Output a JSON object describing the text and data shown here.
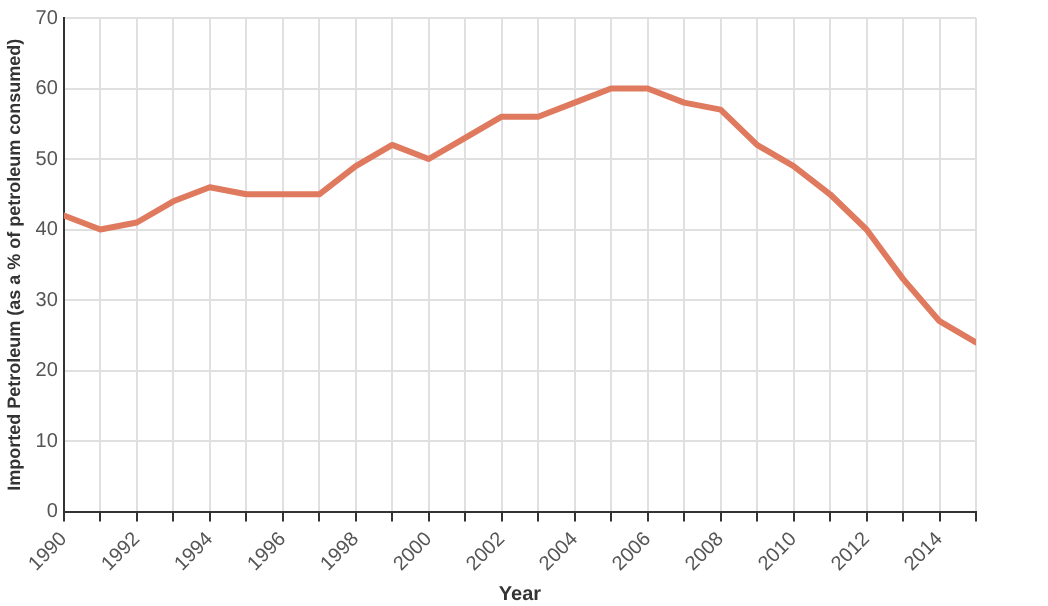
{
  "chart_data": {
    "type": "line",
    "xlabel": "Year",
    "ylabel": "Imported Petroleum (as a % of petroleum consumed)",
    "x": [
      1990,
      1991,
      1992,
      1993,
      1994,
      1995,
      1996,
      1997,
      1998,
      1999,
      2000,
      2001,
      2002,
      2003,
      2004,
      2005,
      2006,
      2007,
      2008,
      2009,
      2010,
      2011,
      2012,
      2013,
      2014,
      2015
    ],
    "series": [
      {
        "color": "#e07a5f",
        "values": [
          42,
          40,
          41,
          44,
          46,
          45,
          45,
          45,
          49,
          52,
          50,
          53,
          56,
          56,
          58,
          60,
          60,
          58,
          57,
          52,
          49,
          45,
          40,
          33,
          27,
          24
        ]
      }
    ],
    "xlim": [
      1990,
      2015
    ],
    "xticks": [
      1990,
      {
        "value": 1991,
        "label": null
      },
      1992,
      {
        "value": 1993,
        "label": null
      },
      1994,
      {
        "value": 1995,
        "label": null
      },
      1996,
      {
        "value": 1997,
        "label": null
      },
      1998,
      {
        "value": 1999,
        "label": null
      },
      2000,
      {
        "value": 2001,
        "label": null
      },
      2002,
      {
        "value": 2003,
        "label": null
      },
      2004,
      {
        "value": 2005,
        "label": null
      },
      2006,
      {
        "value": 2007,
        "label": null
      },
      2008,
      {
        "value": 2009,
        "label": null
      },
      2010,
      {
        "value": 2011,
        "label": null
      },
      2012,
      {
        "value": 2013,
        "label": null
      },
      2014,
      {
        "value": 2015,
        "label": null
      }
    ],
    "ylim": [
      0,
      70
    ],
    "yticks": [
      0,
      10,
      20,
      30,
      40,
      50,
      60,
      70
    ],
    "grid": true,
    "marker": "none",
    "line_style": "solid"
  }
}
